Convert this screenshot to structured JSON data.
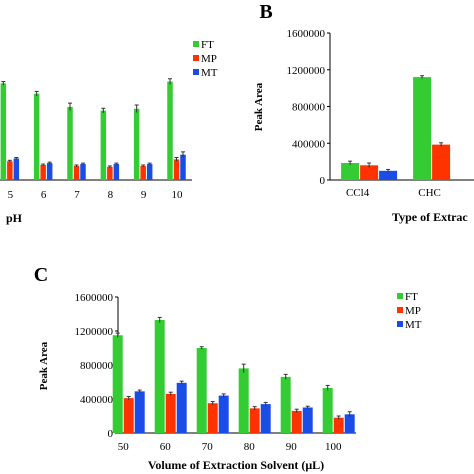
{
  "colors": {
    "FT": "#33cc33",
    "MP": "#ff3300",
    "MT": "#1a4de6"
  },
  "chart_data": [
    {
      "type": "bar",
      "panel": "",
      "categories": [
        "5",
        "6",
        "7",
        "8",
        "9",
        "10"
      ],
      "xlabel": "pH",
      "ylabel": "",
      "legend": [
        "FT",
        "MP",
        "MT"
      ],
      "ylim": [
        0,
        1600000
      ],
      "series": [
        {
          "name": "FT",
          "values": [
            1030000,
            920000,
            780000,
            740000,
            760000,
            1050000
          ],
          "errors": [
            20000,
            25000,
            40000,
            25000,
            40000,
            30000
          ]
        },
        {
          "name": "MP",
          "values": [
            200000,
            160000,
            150000,
            140000,
            150000,
            220000
          ],
          "errors": [
            10000,
            10000,
            10000,
            10000,
            10000,
            20000
          ]
        },
        {
          "name": "MT",
          "values": [
            230000,
            180000,
            170000,
            170000,
            170000,
            270000
          ],
          "errors": [
            10000,
            10000,
            10000,
            10000,
            10000,
            30000
          ]
        }
      ]
    },
    {
      "type": "bar",
      "panel": "B",
      "categories": [
        "CCl4",
        "CHC"
      ],
      "xlabel": "Type of Extrac",
      "ylabel": "Peak Area",
      "yticks": [
        "0",
        "400000",
        "800000",
        "1200000",
        "1600000"
      ],
      "ylim": [
        0,
        1600000
      ],
      "series": [
        {
          "name": "FT",
          "values": [
            185000,
            1120000
          ],
          "errors": [
            20000,
            15000
          ]
        },
        {
          "name": "MP",
          "values": [
            160000,
            385000
          ],
          "errors": [
            25000,
            20000
          ]
        },
        {
          "name": "MT",
          "values": [
            100000,
            null
          ],
          "errors": [
            15000,
            null
          ]
        }
      ]
    },
    {
      "type": "bar",
      "panel": "C",
      "categories": [
        "50",
        "60",
        "70",
        "80",
        "90",
        "100"
      ],
      "xlabel": "Volume of Extraction Solvent (μL)",
      "ylabel": "Peak Area",
      "yticks": [
        "0",
        "400000",
        "800000",
        "1200000",
        "1600000"
      ],
      "legend": [
        "FT",
        "MP",
        "MT"
      ],
      "ylim": [
        0,
        1600000
      ],
      "series": [
        {
          "name": "FT",
          "values": [
            1150000,
            1330000,
            1000000,
            760000,
            660000,
            530000
          ],
          "errors": [
            25000,
            30000,
            15000,
            50000,
            30000,
            30000
          ]
        },
        {
          "name": "MP",
          "values": [
            410000,
            460000,
            350000,
            290000,
            260000,
            180000
          ],
          "errors": [
            20000,
            20000,
            20000,
            20000,
            20000,
            20000
          ]
        },
        {
          "name": "MT",
          "values": [
            490000,
            590000,
            440000,
            340000,
            300000,
            220000
          ],
          "errors": [
            15000,
            20000,
            20000,
            20000,
            15000,
            30000
          ]
        }
      ]
    }
  ]
}
